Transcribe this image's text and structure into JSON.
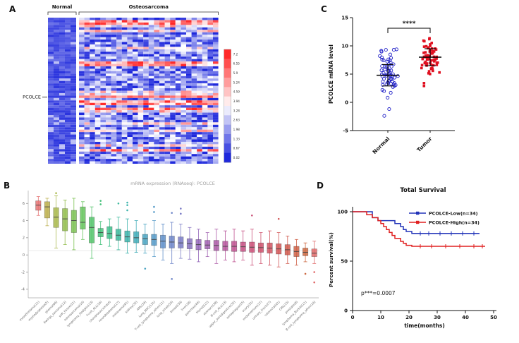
{
  "figure": {
    "bg": "#ffffff",
    "panels": {
      "a": "A",
      "b": "B",
      "c": "C",
      "d": "D"
    }
  },
  "chart_data": [
    {
      "panel": "A",
      "type": "heatmap",
      "group_labels": [
        "Normal",
        "Osteosarcoma"
      ],
      "gene_label": "PCOLCE",
      "rows": 60,
      "cols_normal": 5,
      "cols_tumor": 26,
      "pcolce_row": 32,
      "seed": 42,
      "color_high": "#e03020",
      "color_mid": "#ffffff",
      "color_low": "#2030c8",
      "colorbar_ticks": [
        "7.2",
        "6.55",
        "5.9",
        "5.24",
        "4.59",
        "3.94",
        "3.28",
        "2.63",
        "1.98",
        "1.33",
        "0.67",
        "0.02"
      ]
    },
    {
      "panel": "B",
      "type": "box",
      "title": "mRNA expression (RNAseq): PCOLCE",
      "ylim": [
        -5,
        7.5
      ],
      "yticks": [
        6,
        4,
        2,
        0,
        -2,
        -4
      ],
      "refline": 0.5,
      "categories": [
        {
          "label": "mesothelioma(11)",
          "color": "#e57373",
          "box": [
            4.6,
            5.2,
            5.8,
            6.3,
            6.8
          ],
          "outliers": []
        },
        {
          "label": "myelodysplasia(5)",
          "color": "#bcaf4e",
          "box": [
            3.4,
            4.3,
            5.6,
            6.2,
            6.6
          ],
          "outliers": []
        },
        {
          "label": "glioma(66)",
          "color": "#a9b84c",
          "box": [
            0.8,
            3.2,
            4.4,
            5.5,
            6.9
          ],
          "outliers": [
            7.2
          ]
        },
        {
          "label": "Ewings_sarcoma(12)",
          "color": "#93bd4e",
          "box": [
            1.2,
            2.8,
            4.2,
            5.4,
            6.4
          ],
          "outliers": []
        },
        {
          "label": "soft_tissue(21)",
          "color": "#7cc254",
          "box": [
            0.6,
            2.6,
            4.0,
            5.2,
            6.6
          ],
          "outliers": []
        },
        {
          "label": "osteosarcoma(10)",
          "color": "#67c45e",
          "box": [
            1.8,
            3.0,
            3.8,
            5.6,
            6.2
          ],
          "outliers": []
        },
        {
          "label": "lymphoma_Hodgkin(13)",
          "color": "#55c46c",
          "box": [
            -0.4,
            1.4,
            3.2,
            4.4,
            5.6
          ],
          "outliers": []
        },
        {
          "label": "T-cell_ALL(16)",
          "color": "#48c27c",
          "box": [
            1.2,
            2.1,
            2.6,
            3.1,
            3.9
          ],
          "outliers": [
            5.9,
            6.3
          ]
        },
        {
          "label": "chondrosarcoma(4)",
          "color": "#40bf8d",
          "box": [
            1.0,
            1.9,
            2.5,
            3.3,
            4.2
          ],
          "outliers": []
        },
        {
          "label": "neuroblastoma(17)",
          "color": "#3cba9d",
          "box": [
            0.6,
            1.7,
            2.3,
            3.0,
            4.4
          ],
          "outliers": [
            6.0
          ]
        },
        {
          "label": "melanoma(61)",
          "color": "#3db4ac",
          "box": [
            0.2,
            1.5,
            2.1,
            2.8,
            4.2
          ],
          "outliers": [
            5.2,
            5.8,
            6.1
          ]
        },
        {
          "label": "kidney(32)",
          "color": "#42adb9",
          "box": [
            0.3,
            1.4,
            2.0,
            2.7,
            4.0
          ],
          "outliers": []
        },
        {
          "label": "AML(34)",
          "color": "#4aa4c2",
          "box": [
            0.2,
            1.2,
            1.9,
            2.4,
            3.6
          ],
          "outliers": [
            -1.6
          ]
        },
        {
          "label": "lung_NSC(131)",
          "color": "#559ac8",
          "box": [
            -0.2,
            1.1,
            1.8,
            2.4,
            4.0
          ],
          "outliers": [
            5.0,
            5.6
          ]
        },
        {
          "label": "T-cell_lymphoma_other(11)",
          "color": "#6190ca",
          "box": [
            -0.6,
            0.8,
            1.6,
            2.3,
            3.6
          ],
          "outliers": []
        },
        {
          "label": "lung_small(53)",
          "color": "#6e86c9",
          "box": [
            -1.0,
            0.8,
            1.5,
            2.2,
            3.8
          ],
          "outliers": [
            -2.8,
            4.9
          ]
        },
        {
          "label": "breast(59)",
          "color": "#7b7cc6",
          "box": [
            -0.4,
            0.8,
            1.4,
            2.1,
            3.6
          ],
          "outliers": [
            4.8,
            5.4
          ]
        },
        {
          "label": "liver(28)",
          "color": "#8872c1",
          "box": [
            -0.5,
            0.7,
            1.3,
            1.9,
            3.2
          ],
          "outliers": []
        },
        {
          "label": "pancreas(44)",
          "color": "#9569ba",
          "box": [
            -0.8,
            0.6,
            1.2,
            1.8,
            3.0
          ],
          "outliers": []
        },
        {
          "label": "thyroid(12)",
          "color": "#a161b1",
          "box": [
            -0.2,
            0.7,
            1.15,
            1.7,
            2.6
          ],
          "outliers": []
        },
        {
          "label": "stomach(38)",
          "color": "#ac5aa7",
          "box": [
            -1.0,
            0.5,
            1.1,
            1.7,
            3.0
          ],
          "outliers": []
        },
        {
          "label": "B-cell_ALL(13)",
          "color": "#b6559c",
          "box": [
            -0.6,
            0.5,
            1.0,
            1.6,
            2.8
          ],
          "outliers": []
        },
        {
          "label": "upper_aerodigestive(32)",
          "color": "#bf5290",
          "box": [
            -0.8,
            0.4,
            1.0,
            1.6,
            3.0
          ],
          "outliers": []
        },
        {
          "label": "oesophagus(25)",
          "color": "#c65084",
          "box": [
            -0.6,
            0.4,
            0.95,
            1.5,
            2.8
          ],
          "outliers": []
        },
        {
          "label": "ovary(51)",
          "color": "#cb5078",
          "box": [
            -1.2,
            0.3,
            0.9,
            1.5,
            3.0
          ],
          "outliers": [
            4.6
          ]
        },
        {
          "label": "endometrium(27)",
          "color": "#cf516c",
          "box": [
            -1.0,
            0.3,
            0.85,
            1.4,
            2.6
          ],
          "outliers": []
        },
        {
          "label": "urinary_tract(27)",
          "color": "#d15361",
          "box": [
            -1.2,
            0.2,
            0.8,
            1.4,
            2.8
          ],
          "outliers": []
        },
        {
          "label": "colorectal(61)",
          "color": "#d25657",
          "box": [
            -1.4,
            0.1,
            0.7,
            1.3,
            2.6
          ],
          "outliers": [
            4.2
          ]
        },
        {
          "label": "CML(15)",
          "color": "#d15b4e",
          "box": [
            -1.0,
            0.0,
            0.6,
            1.2,
            2.2
          ],
          "outliers": []
        },
        {
          "label": "prostate(8)",
          "color": "#cf6147",
          "box": [
            -1.2,
            -0.2,
            0.4,
            1.0,
            1.8
          ],
          "outliers": []
        },
        {
          "label": "lymphoma_Burkitt(11)",
          "color": "#cc6841",
          "box": [
            -0.8,
            -0.1,
            0.3,
            0.8,
            1.4
          ],
          "outliers": [
            -2.2
          ]
        },
        {
          "label": "B-cell_lymphoma_other(16)",
          "color": "#e06a6a",
          "box": [
            -1.0,
            -0.2,
            0.2,
            0.7,
            1.6
          ],
          "outliers": [
            -2.0,
            -3.2
          ]
        }
      ]
    },
    {
      "panel": "C",
      "type": "scatter",
      "ylabel": "PCOLCE mRNA level",
      "ylim": [
        -5,
        15
      ],
      "yticks": [
        15,
        10,
        5,
        0,
        -5
      ],
      "significance": "****",
      "groups": [
        {
          "label": "Normal",
          "color": "#2020c8",
          "marker": "circle-open",
          "n": 65,
          "mean": 4.8,
          "sd": 1.9,
          "seed": 7
        },
        {
          "label": "Tumor",
          "color": "#e01020",
          "marker": "square-filled",
          "n": 70,
          "mean": 8.0,
          "sd": 1.5,
          "seed": 13
        }
      ]
    },
    {
      "panel": "D",
      "type": "survival",
      "title": "Total Survival",
      "xlabel": "time(months)",
      "ylabel": "Percent survival(%)",
      "xlim": [
        0,
        50
      ],
      "xticks": [
        0,
        10,
        20,
        30,
        40,
        50
      ],
      "yticks": [
        0,
        50,
        100
      ],
      "p_text": "p***=0.0007",
      "series": [
        {
          "label": "PCOLCE-Low(n=34)",
          "color": "#2233b8",
          "steps": [
            [
              0,
              100
            ],
            [
              7,
              100
            ],
            [
              7,
              94
            ],
            [
              9,
              94
            ],
            [
              9,
              91
            ],
            [
              15,
              91
            ],
            [
              15,
              88
            ],
            [
              17,
              88
            ],
            [
              17,
              85
            ],
            [
              18,
              85
            ],
            [
              18,
              82
            ],
            [
              19,
              82
            ],
            [
              19,
              80
            ],
            [
              21,
              80
            ],
            [
              21,
              78
            ],
            [
              45,
              78
            ]
          ],
          "censors": [
            24,
            27,
            31,
            35,
            39,
            43
          ]
        },
        {
          "label": "PCOLCE-High(n=34)",
          "color": "#e02020",
          "steps": [
            [
              0,
              100
            ],
            [
              5,
              100
            ],
            [
              5,
              97
            ],
            [
              7,
              97
            ],
            [
              7,
              94
            ],
            [
              9,
              94
            ],
            [
              9,
              91
            ],
            [
              10,
              91
            ],
            [
              10,
              88
            ],
            [
              11,
              88
            ],
            [
              11,
              85
            ],
            [
              12,
              85
            ],
            [
              12,
              82
            ],
            [
              13,
              82
            ],
            [
              13,
              79
            ],
            [
              14,
              79
            ],
            [
              14,
              76
            ],
            [
              15,
              76
            ],
            [
              15,
              73
            ],
            [
              17,
              73
            ],
            [
              17,
              70
            ],
            [
              18,
              70
            ],
            [
              18,
              68
            ],
            [
              19,
              68
            ],
            [
              19,
              66
            ],
            [
              21,
              66
            ],
            [
              21,
              65
            ],
            [
              47,
              65
            ]
          ],
          "censors": [
            24,
            28,
            33,
            38,
            43,
            46
          ]
        }
      ]
    }
  ]
}
